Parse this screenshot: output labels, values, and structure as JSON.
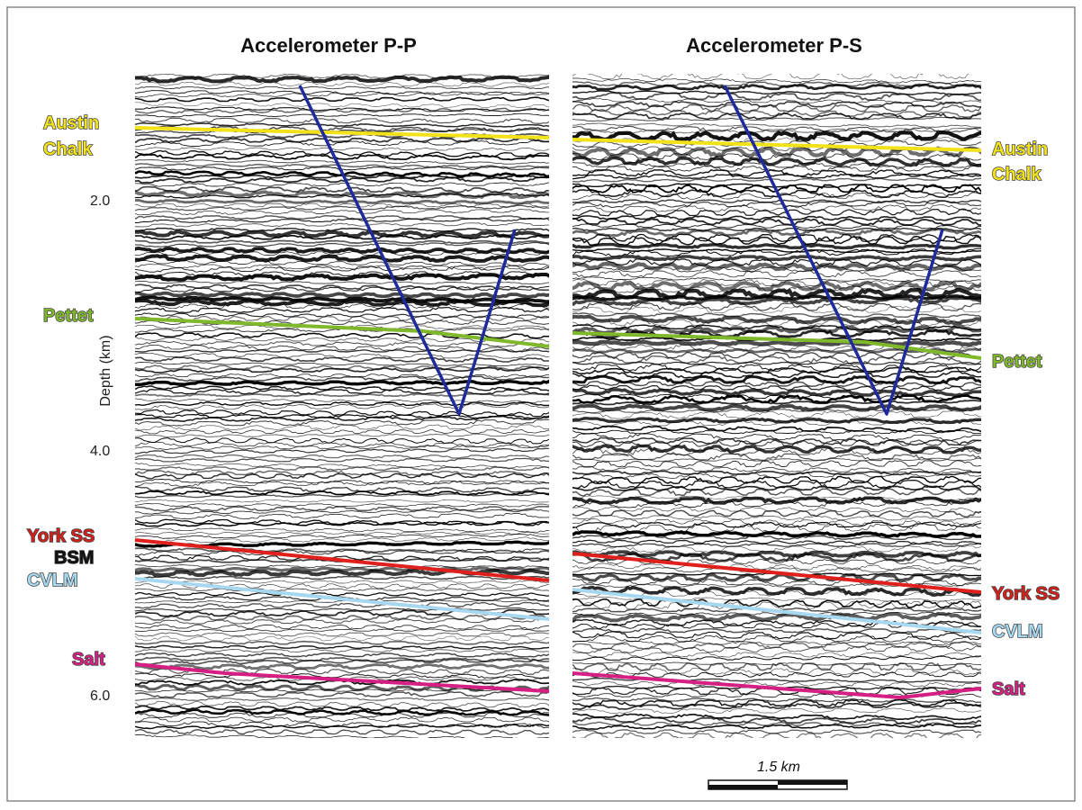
{
  "panels": [
    {
      "title": "Accelerometer P-P",
      "labels": [
        "Austin",
        "Chalk",
        "Pettet",
        "York SS",
        "BSM",
        "CVLM",
        "Salt"
      ]
    },
    {
      "title": "Accelerometer P-S",
      "labels": [
        "Austin",
        "Chalk",
        "Pettet",
        "York SS",
        "CVLM",
        "Salt"
      ]
    }
  ],
  "depth_axis": {
    "label": "Depth (km)",
    "ticks": [
      "2.0",
      "4.0",
      "6.0"
    ]
  },
  "scale_bar": "1.5 km"
}
